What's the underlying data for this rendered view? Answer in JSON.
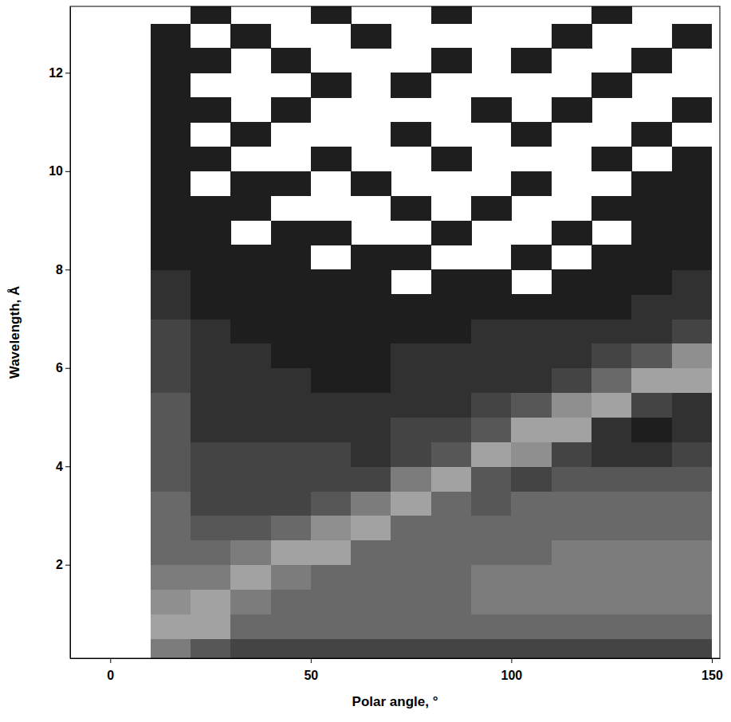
{
  "chart_data": {
    "type": "heatmap",
    "x_label": "Polar angle, °",
    "y_label": "Wavelength, Å",
    "xlim": [
      -10,
      152
    ],
    "ylim": [
      0.1,
      13.35
    ],
    "xticks": [
      0,
      50,
      100,
      150
    ],
    "yticks": [
      2,
      4,
      6,
      8,
      10,
      12
    ],
    "grid": false,
    "zlim": [
      1,
      8
    ],
    "x_edges": [
      10,
      20,
      30,
      40,
      50,
      60,
      70,
      80,
      90,
      100,
      110,
      120,
      130,
      140,
      150
    ],
    "y_edges": [
      0,
      0.5,
      1,
      1.5,
      2,
      2.5,
      3,
      3.5,
      4,
      4.5,
      5,
      5.5,
      6,
      6.5,
      7,
      7.5,
      8,
      8.5,
      9,
      9.5,
      10,
      10.5,
      11,
      11.5,
      12,
      12.5,
      13,
      13.5
    ],
    "cells": [
      [
        6,
        4,
        3,
        3,
        3,
        3,
        3,
        3,
        3,
        3,
        3,
        3,
        3,
        3
      ],
      [
        8,
        8,
        5,
        5,
        5,
        5,
        5,
        5,
        5,
        5,
        5,
        5,
        5,
        5
      ],
      [
        7,
        8,
        6,
        5,
        5,
        5,
        5,
        5,
        6,
        6,
        6,
        6,
        6,
        6
      ],
      [
        6,
        6,
        8,
        6,
        5,
        5,
        5,
        5,
        6,
        6,
        6,
        6,
        6,
        6
      ],
      [
        5,
        5,
        6,
        8,
        8,
        5,
        5,
        5,
        5,
        5,
        6,
        6,
        6,
        6
      ],
      [
        5,
        4,
        4,
        5,
        7,
        8,
        5,
        5,
        5,
        5,
        5,
        5,
        5,
        5
      ],
      [
        5,
        3,
        3,
        3,
        4,
        6,
        8,
        5,
        4,
        5,
        5,
        5,
        5,
        5
      ],
      [
        4,
        3,
        3,
        3,
        3,
        3,
        6,
        8,
        4,
        3,
        4,
        4,
        4,
        4
      ],
      [
        4,
        3,
        3,
        3,
        3,
        2,
        3,
        4,
        8,
        7,
        3,
        2,
        2,
        3
      ],
      [
        4,
        2,
        2,
        2,
        2,
        2,
        3,
        3,
        4,
        8,
        8,
        2,
        1,
        2
      ],
      [
        4,
        2,
        2,
        2,
        2,
        2,
        2,
        2,
        3,
        4,
        7,
        8,
        3,
        2
      ],
      [
        3,
        2,
        2,
        2,
        1,
        1,
        2,
        2,
        2,
        2,
        3,
        5,
        8,
        8
      ],
      [
        3,
        2,
        2,
        1,
        1,
        1,
        2,
        2,
        2,
        2,
        2,
        3,
        4,
        7
      ],
      [
        3,
        2,
        1,
        1,
        1,
        1,
        1,
        1,
        2,
        2,
        2,
        2,
        2,
        3
      ],
      [
        2,
        1,
        1,
        1,
        1,
        1,
        1,
        1,
        1,
        1,
        1,
        1,
        2,
        2
      ],
      [
        2,
        1,
        1,
        1,
        1,
        1,
        null,
        1,
        1,
        null,
        1,
        1,
        1,
        2
      ],
      [
        1,
        1,
        1,
        1,
        null,
        1,
        1,
        null,
        null,
        1,
        null,
        1,
        1,
        1
      ],
      [
        1,
        1,
        null,
        1,
        1,
        null,
        null,
        1,
        null,
        null,
        1,
        null,
        1,
        1
      ],
      [
        1,
        1,
        1,
        null,
        null,
        null,
        1,
        null,
        1,
        null,
        null,
        1,
        1,
        1
      ],
      [
        1,
        null,
        1,
        1,
        null,
        1,
        null,
        null,
        null,
        1,
        null,
        null,
        1,
        1
      ],
      [
        1,
        1,
        null,
        null,
        1,
        null,
        null,
        1,
        null,
        null,
        null,
        1,
        null,
        1
      ],
      [
        1,
        null,
        1,
        null,
        null,
        null,
        1,
        null,
        null,
        1,
        null,
        null,
        1,
        null
      ],
      [
        1,
        1,
        null,
        1,
        null,
        null,
        null,
        null,
        1,
        null,
        1,
        null,
        null,
        1
      ],
      [
        1,
        null,
        null,
        null,
        1,
        null,
        1,
        null,
        null,
        null,
        null,
        1,
        null,
        null
      ],
      [
        1,
        1,
        null,
        1,
        null,
        null,
        null,
        1,
        null,
        1,
        null,
        null,
        1,
        null
      ],
      [
        1,
        null,
        1,
        null,
        null,
        1,
        null,
        null,
        null,
        null,
        1,
        null,
        null,
        1
      ],
      [
        null,
        1,
        null,
        null,
        1,
        null,
        null,
        1,
        null,
        null,
        null,
        1,
        null,
        null
      ]
    ]
  }
}
